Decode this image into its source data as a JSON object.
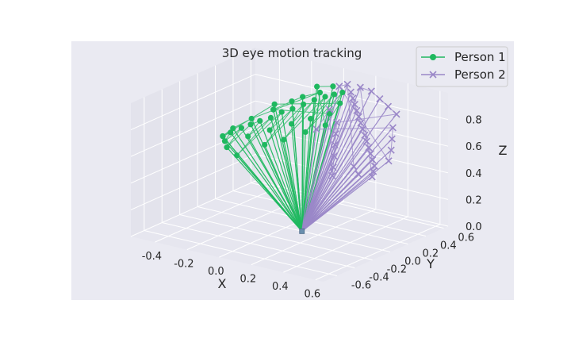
{
  "chart_data": {
    "type": "scatter",
    "projection": "3d",
    "title": "3D eye motion tracking",
    "xlabel": "X",
    "ylabel": "Y",
    "zlabel": "Z",
    "xlim": [
      -0.55,
      0.65
    ],
    "ylim": [
      -0.75,
      0.65
    ],
    "zlim": [
      0.0,
      1.0
    ],
    "xticks": [
      "-0.4",
      "-0.2",
      "0.0",
      "0.2",
      "0.4",
      "0.6"
    ],
    "yticks": [
      "-0.6",
      "-0.4",
      "-0.2",
      "0.0",
      "0.2",
      "0.4",
      "0.6"
    ],
    "zticks": [
      "0.0",
      "0.2",
      "0.4",
      "0.6",
      "0.8"
    ],
    "grid": true,
    "legend_position": "top-right",
    "origin": [
      0.1,
      0.0,
      0.0
    ],
    "lines_from_origin": true,
    "series": [
      {
        "name": "Person 1",
        "color": "#1fb85f",
        "marker": "circle",
        "description_points": "gaze points clustered on the left/back side",
        "points": [
          [
            -0.42,
            0.05,
            0.55
          ],
          [
            -0.4,
            0.1,
            0.57
          ],
          [
            -0.38,
            0.0,
            0.54
          ],
          [
            -0.36,
            0.15,
            0.6
          ],
          [
            -0.34,
            -0.05,
            0.52
          ],
          [
            -0.33,
            0.2,
            0.62
          ],
          [
            -0.3,
            0.25,
            0.64
          ],
          [
            -0.28,
            0.08,
            0.58
          ],
          [
            -0.26,
            0.3,
            0.66
          ],
          [
            -0.25,
            -0.1,
            0.5
          ],
          [
            -0.22,
            0.35,
            0.7
          ],
          [
            -0.2,
            0.18,
            0.62
          ],
          [
            -0.18,
            0.4,
            0.72
          ],
          [
            -0.16,
            0.05,
            0.56
          ],
          [
            -0.14,
            0.45,
            0.75
          ],
          [
            -0.12,
            0.28,
            0.66
          ],
          [
            -0.1,
            0.5,
            0.78
          ],
          [
            -0.08,
            0.12,
            0.6
          ],
          [
            -0.06,
            0.55,
            0.8
          ],
          [
            -0.04,
            0.35,
            0.7
          ],
          [
            -0.02,
            0.58,
            0.82
          ],
          [
            0.0,
            0.22,
            0.65
          ],
          [
            0.02,
            0.6,
            0.84
          ],
          [
            0.04,
            0.42,
            0.74
          ],
          [
            -0.3,
            0.4,
            0.68
          ],
          [
            -0.24,
            0.5,
            0.73
          ],
          [
            -0.2,
            0.55,
            0.76
          ],
          [
            -0.12,
            0.6,
            0.8
          ],
          [
            -0.38,
            0.3,
            0.62
          ],
          [
            -0.44,
            0.2,
            0.56
          ],
          [
            -0.46,
            0.12,
            0.52
          ],
          [
            -0.32,
            0.45,
            0.7
          ],
          [
            0.06,
            0.5,
            0.8
          ],
          [
            0.08,
            0.3,
            0.7
          ],
          [
            -0.15,
            0.62,
            0.83
          ],
          [
            -0.05,
            0.62,
            0.86
          ]
        ]
      },
      {
        "name": "Person 2",
        "color": "#9a87c8",
        "marker": "x",
        "description_points": "gaze points clustered on the right/front side",
        "points": [
          [
            0.1,
            0.55,
            0.88
          ],
          [
            0.14,
            0.5,
            0.86
          ],
          [
            0.18,
            0.45,
            0.84
          ],
          [
            0.22,
            0.4,
            0.82
          ],
          [
            0.26,
            0.35,
            0.8
          ],
          [
            0.3,
            0.3,
            0.78
          ],
          [
            0.34,
            0.25,
            0.76
          ],
          [
            0.38,
            0.2,
            0.74
          ],
          [
            0.42,
            0.15,
            0.72
          ],
          [
            0.46,
            0.1,
            0.7
          ],
          [
            0.5,
            0.05,
            0.68
          ],
          [
            0.54,
            0.0,
            0.66
          ],
          [
            0.58,
            -0.05,
            0.64
          ],
          [
            0.6,
            -0.1,
            0.62
          ],
          [
            0.62,
            -0.15,
            0.6
          ],
          [
            0.12,
            0.62,
            0.9
          ],
          [
            0.2,
            0.6,
            0.9
          ],
          [
            0.28,
            0.55,
            0.88
          ],
          [
            0.36,
            0.5,
            0.86
          ],
          [
            0.44,
            0.45,
            0.84
          ],
          [
            0.15,
            0.3,
            0.74
          ],
          [
            0.2,
            0.2,
            0.7
          ],
          [
            0.25,
            0.1,
            0.66
          ],
          [
            0.3,
            0.0,
            0.62
          ],
          [
            0.35,
            -0.1,
            0.58
          ],
          [
            0.4,
            -0.2,
            0.56
          ],
          [
            0.05,
            0.4,
            0.78
          ],
          [
            0.08,
            0.2,
            0.7
          ],
          [
            0.5,
            0.3,
            0.8
          ],
          [
            0.55,
            0.2,
            0.76
          ],
          [
            0.6,
            0.1,
            0.72
          ],
          [
            0.64,
            0.0,
            0.68
          ],
          [
            0.0,
            0.6,
            0.88
          ],
          [
            0.04,
            0.62,
            0.9
          ],
          [
            0.45,
            -0.05,
            0.6
          ],
          [
            0.52,
            -0.12,
            0.58
          ]
        ]
      }
    ]
  }
}
